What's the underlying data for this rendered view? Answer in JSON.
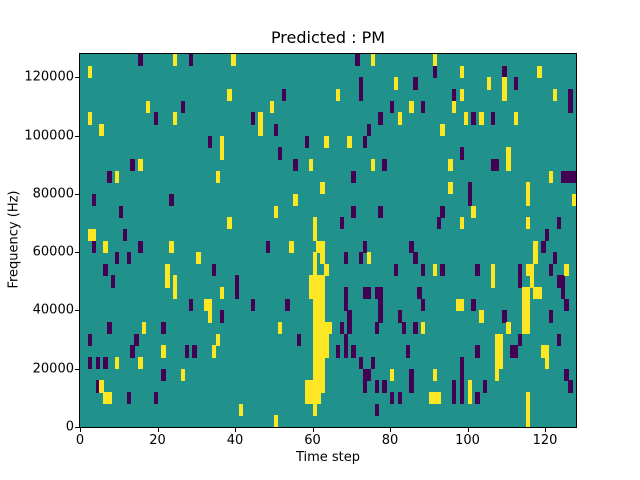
{
  "chart_data": {
    "type": "heatmap",
    "title": "Predicted : PM",
    "xlabel": "Time step",
    "ylabel": "Frequency (Hz)",
    "xlim": [
      0,
      128
    ],
    "ylim": [
      0,
      128000
    ],
    "grid_cols": 128,
    "grid_rows": 32,
    "row_height_hz": 4000,
    "xticks": [
      0,
      20,
      40,
      60,
      80,
      100,
      120
    ],
    "yticks": [
      0,
      20000,
      40000,
      60000,
      80000,
      100000,
      120000
    ],
    "grid": false,
    "legend": "none",
    "colors": {
      "background_value_mid": "#21918c",
      "value_low_purple": "#440154",
      "value_high_yellow": "#fde725",
      "spine": "#000000",
      "figure_bg": "#ffffff"
    },
    "cells_yellow": [
      [
        2,
        30
      ],
      [
        24,
        31
      ],
      [
        39,
        31
      ],
      [
        38,
        28
      ],
      [
        17,
        27
      ],
      [
        24,
        26
      ],
      [
        2,
        26
      ],
      [
        5,
        25
      ],
      [
        36,
        24
      ],
      [
        36,
        23
      ],
      [
        15,
        22
      ],
      [
        9,
        21
      ],
      [
        35,
        21
      ],
      [
        75,
        31
      ],
      [
        81,
        29
      ],
      [
        66,
        28
      ],
      [
        49,
        27
      ],
      [
        82,
        26
      ],
      [
        46,
        26
      ],
      [
        46,
        25
      ],
      [
        63,
        24
      ],
      [
        69,
        24
      ],
      [
        59,
        22
      ],
      [
        75,
        22
      ],
      [
        91,
        31
      ],
      [
        98,
        30
      ],
      [
        118,
        30
      ],
      [
        105,
        29
      ],
      [
        109,
        29
      ],
      [
        109,
        28
      ],
      [
        98,
        28
      ],
      [
        122,
        28
      ],
      [
        85,
        27
      ],
      [
        96,
        27
      ],
      [
        99,
        26
      ],
      [
        103,
        26
      ],
      [
        112,
        26
      ],
      [
        93,
        25
      ],
      [
        110,
        23
      ],
      [
        110,
        22
      ],
      [
        95,
        22
      ],
      [
        121,
        21
      ],
      [
        38,
        17
      ],
      [
        2,
        16
      ],
      [
        3,
        16
      ],
      [
        6,
        15
      ],
      [
        23,
        15
      ],
      [
        30,
        14
      ],
      [
        22,
        13
      ],
      [
        22,
        12
      ],
      [
        24,
        12
      ],
      [
        24,
        11
      ],
      [
        36,
        11
      ],
      [
        62,
        20
      ],
      [
        55,
        19
      ],
      [
        50,
        18
      ],
      [
        54,
        15
      ],
      [
        74,
        14
      ],
      [
        63,
        13
      ],
      [
        95,
        20
      ],
      [
        115,
        20
      ],
      [
        115,
        19
      ],
      [
        127,
        19
      ],
      [
        101,
        18
      ],
      [
        98,
        17
      ],
      [
        115,
        17
      ],
      [
        117,
        15
      ],
      [
        117,
        14
      ],
      [
        106,
        13
      ],
      [
        106,
        12
      ],
      [
        115,
        13
      ],
      [
        116,
        13
      ],
      [
        116,
        12
      ],
      [
        91,
        13
      ],
      [
        125,
        13
      ],
      [
        117,
        11
      ],
      [
        118,
        11
      ],
      [
        114,
        11
      ],
      [
        115,
        11
      ],
      [
        32,
        10
      ],
      [
        33,
        10
      ],
      [
        33,
        9
      ],
      [
        16,
        8
      ],
      [
        35,
        7
      ],
      [
        34,
        6
      ],
      [
        21,
        6
      ],
      [
        9,
        5
      ],
      [
        15,
        5
      ],
      [
        26,
        4
      ],
      [
        5,
        3
      ],
      [
        6,
        2
      ],
      [
        7,
        2
      ],
      [
        41,
        1
      ],
      [
        51,
        8
      ],
      [
        64,
        8
      ],
      [
        80,
        4
      ],
      [
        50,
        0
      ],
      [
        97,
        10
      ],
      [
        98,
        10
      ],
      [
        103,
        9
      ],
      [
        114,
        10
      ],
      [
        115,
        10
      ],
      [
        114,
        9
      ],
      [
        115,
        9
      ],
      [
        114,
        8
      ],
      [
        115,
        8
      ],
      [
        110,
        8
      ],
      [
        88,
        8
      ],
      [
        107,
        7
      ],
      [
        108,
        7
      ],
      [
        107,
        6
      ],
      [
        108,
        6
      ],
      [
        107,
        5
      ],
      [
        108,
        5
      ],
      [
        107,
        4
      ],
      [
        119,
        6
      ],
      [
        120,
        6
      ],
      [
        120,
        5
      ],
      [
        91,
        4
      ],
      [
        100,
        3
      ],
      [
        100,
        2
      ],
      [
        90,
        2
      ],
      [
        91,
        2
      ],
      [
        92,
        2
      ],
      [
        115,
        2
      ],
      [
        115,
        1
      ],
      [
        115,
        0
      ],
      [
        58,
        2
      ],
      [
        58,
        3
      ],
      [
        59,
        2
      ],
      [
        59,
        3
      ],
      [
        59,
        11
      ],
      [
        59,
        12
      ],
      [
        60,
        1
      ],
      [
        60,
        2
      ],
      [
        60,
        3
      ],
      [
        60,
        4
      ],
      [
        60,
        5
      ],
      [
        60,
        6
      ],
      [
        60,
        7
      ],
      [
        60,
        8
      ],
      [
        60,
        9
      ],
      [
        60,
        10
      ],
      [
        60,
        11
      ],
      [
        60,
        12
      ],
      [
        60,
        13
      ],
      [
        60,
        14
      ],
      [
        60,
        16
      ],
      [
        60,
        17
      ],
      [
        61,
        2
      ],
      [
        61,
        3
      ],
      [
        61,
        4
      ],
      [
        61,
        5
      ],
      [
        61,
        6
      ],
      [
        61,
        7
      ],
      [
        61,
        8
      ],
      [
        61,
        9
      ],
      [
        61,
        10
      ],
      [
        61,
        11
      ],
      [
        61,
        12
      ],
      [
        61,
        15
      ],
      [
        62,
        3
      ],
      [
        62,
        4
      ],
      [
        62,
        5
      ],
      [
        62,
        6
      ],
      [
        62,
        7
      ],
      [
        62,
        8
      ],
      [
        62,
        9
      ],
      [
        62,
        10
      ],
      [
        62,
        11
      ],
      [
        62,
        12
      ],
      [
        62,
        14
      ],
      [
        62,
        15
      ],
      [
        63,
        6
      ],
      [
        63,
        7
      ],
      [
        63,
        8
      ]
    ],
    "cells_purple": [
      [
        15,
        31
      ],
      [
        28,
        31
      ],
      [
        26,
        27
      ],
      [
        19,
        26
      ],
      [
        33,
        24
      ],
      [
        13,
        22
      ],
      [
        7,
        21
      ],
      [
        71,
        31
      ],
      [
        72,
        29
      ],
      [
        72,
        28
      ],
      [
        52,
        28
      ],
      [
        80,
        27
      ],
      [
        77,
        26
      ],
      [
        44,
        26
      ],
      [
        50,
        25
      ],
      [
        74,
        25
      ],
      [
        73,
        24
      ],
      [
        58,
        24
      ],
      [
        51,
        23
      ],
      [
        55,
        22
      ],
      [
        78,
        22
      ],
      [
        70,
        21
      ],
      [
        86,
        29
      ],
      [
        91,
        30
      ],
      [
        109,
        30
      ],
      [
        112,
        29
      ],
      [
        96,
        28
      ],
      [
        126,
        28
      ],
      [
        126,
        27
      ],
      [
        88,
        27
      ],
      [
        101,
        26
      ],
      [
        106,
        26
      ],
      [
        98,
        23
      ],
      [
        106,
        22
      ],
      [
        107,
        22
      ],
      [
        124,
        21
      ],
      [
        125,
        21
      ],
      [
        126,
        21
      ],
      [
        127,
        21
      ],
      [
        3,
        19
      ],
      [
        23,
        19
      ],
      [
        10,
        18
      ],
      [
        11,
        16
      ],
      [
        3,
        15
      ],
      [
        15,
        15
      ],
      [
        12,
        14
      ],
      [
        9,
        14
      ],
      [
        6,
        13
      ],
      [
        8,
        12
      ],
      [
        34,
        13
      ],
      [
        40,
        12
      ],
      [
        40,
        11
      ],
      [
        48,
        15
      ],
      [
        70,
        18
      ],
      [
        77,
        18
      ],
      [
        67,
        17
      ],
      [
        73,
        15
      ],
      [
        72,
        14
      ],
      [
        68,
        14
      ],
      [
        81,
        13
      ],
      [
        73,
        11
      ],
      [
        74,
        11
      ],
      [
        76,
        11
      ],
      [
        77,
        11
      ],
      [
        68,
        11
      ],
      [
        100,
        20
      ],
      [
        100,
        19
      ],
      [
        93,
        18
      ],
      [
        92,
        17
      ],
      [
        123,
        17
      ],
      [
        120,
        16
      ],
      [
        119,
        15
      ],
      [
        85,
        15
      ],
      [
        86,
        14
      ],
      [
        122,
        14
      ],
      [
        93,
        13
      ],
      [
        102,
        13
      ],
      [
        88,
        13
      ],
      [
        113,
        13
      ],
      [
        113,
        12
      ],
      [
        121,
        13
      ],
      [
        123,
        12
      ],
      [
        124,
        12
      ],
      [
        124,
        11
      ],
      [
        87,
        11
      ],
      [
        28,
        10
      ],
      [
        36,
        9
      ],
      [
        7,
        8
      ],
      [
        21,
        8
      ],
      [
        2,
        7
      ],
      [
        14,
        7
      ],
      [
        13,
        6
      ],
      [
        27,
        6
      ],
      [
        29,
        6
      ],
      [
        2,
        5
      ],
      [
        4,
        5
      ],
      [
        6,
        5
      ],
      [
        21,
        4
      ],
      [
        4,
        3
      ],
      [
        12,
        2
      ],
      [
        19,
        2
      ],
      [
        44,
        10
      ],
      [
        53,
        10
      ],
      [
        68,
        10
      ],
      [
        77,
        10
      ],
      [
        77,
        9
      ],
      [
        69,
        9
      ],
      [
        69,
        8
      ],
      [
        67,
        8
      ],
      [
        76,
        8
      ],
      [
        82,
        9
      ],
      [
        83,
        8
      ],
      [
        56,
        7
      ],
      [
        68,
        7
      ],
      [
        68,
        6
      ],
      [
        70,
        6
      ],
      [
        66,
        6
      ],
      [
        72,
        5
      ],
      [
        75,
        5
      ],
      [
        73,
        4
      ],
      [
        74,
        4
      ],
      [
        76,
        3
      ],
      [
        78,
        3
      ],
      [
        73,
        3
      ],
      [
        80,
        2
      ],
      [
        82,
        2
      ],
      [
        76,
        1
      ],
      [
        84,
        6
      ],
      [
        88,
        10
      ],
      [
        101,
        10
      ],
      [
        109,
        9
      ],
      [
        121,
        9
      ],
      [
        125,
        10
      ],
      [
        86,
        8
      ],
      [
        113,
        7
      ],
      [
        123,
        7
      ],
      [
        102,
        6
      ],
      [
        111,
        6
      ],
      [
        112,
        6
      ],
      [
        98,
        5
      ],
      [
        98,
        4
      ],
      [
        98,
        3
      ],
      [
        98,
        2
      ],
      [
        85,
        4
      ],
      [
        85,
        3
      ],
      [
        96,
        3
      ],
      [
        96,
        2
      ],
      [
        104,
        3
      ],
      [
        102,
        2
      ],
      [
        125,
        4
      ],
      [
        126,
        3
      ]
    ]
  }
}
